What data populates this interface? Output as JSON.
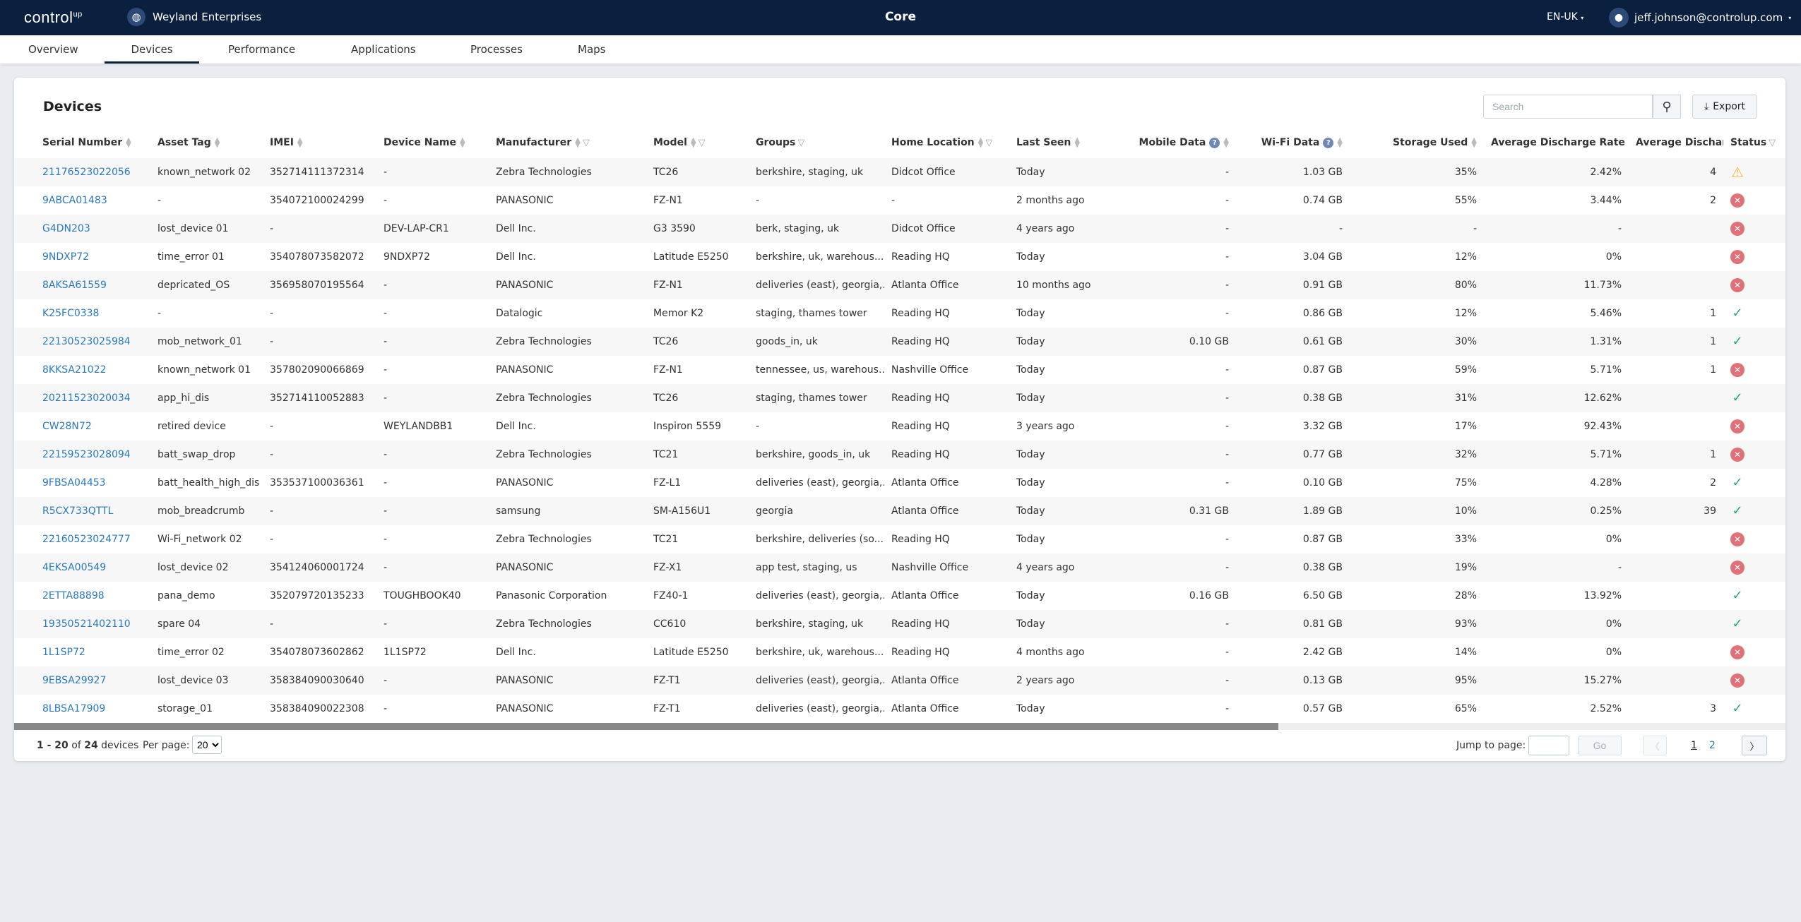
{
  "header": {
    "logo": "control",
    "logo_sup": "up",
    "org": "Weyland Enterprises",
    "title": "Core",
    "lang": "EN-UK",
    "user": "jeff.johnson@controlup.com"
  },
  "tabs": [
    {
      "label": "Overview"
    },
    {
      "label": "Devices",
      "active": true
    },
    {
      "label": "Performance"
    },
    {
      "label": "Applications"
    },
    {
      "label": "Processes"
    },
    {
      "label": "Maps"
    }
  ],
  "devices": {
    "title": "Devices",
    "search_placeholder": "Search",
    "export_label": "Export",
    "columns": [
      {
        "label": "Serial Number",
        "sort": true
      },
      {
        "label": "Asset Tag",
        "sort": true
      },
      {
        "label": "IMEI",
        "sort": true
      },
      {
        "label": "Device Name",
        "sort": true
      },
      {
        "label": "Manufacturer",
        "sort": true,
        "filter": true
      },
      {
        "label": "Model",
        "sort": true,
        "filter": true
      },
      {
        "label": "Groups",
        "filter": true
      },
      {
        "label": "Home Location",
        "sort": true,
        "filter": true
      },
      {
        "label": "Last Seen",
        "sort": true
      },
      {
        "label": "Mobile Data",
        "help": true,
        "sort": true,
        "align": "r"
      },
      {
        "label": "Wi-Fi Data",
        "help": true,
        "sort": true,
        "align": "r"
      },
      {
        "label": "Storage Used",
        "sort": true,
        "align": "r"
      },
      {
        "label": "Average Discharge Rate",
        "sort": true,
        "align": "r"
      },
      {
        "label": "Average Dischar",
        "align": "r"
      },
      {
        "label": "Status",
        "filter": true
      }
    ],
    "rows": [
      [
        "21176523022056",
        "known_network 02",
        "352714111372314",
        "-",
        "Zebra Technologies",
        "TC26",
        "berkshire, staging, uk",
        "Didcot Office",
        "Today",
        "-",
        "1.03 GB",
        "35%",
        "2.42%",
        "4",
        "warning"
      ],
      [
        "9ABCA01483",
        "-",
        "354072100024299",
        "-",
        "PANASONIC",
        "FZ-N1",
        "-",
        "-",
        "2 months ago",
        "-",
        "0.74 GB",
        "55%",
        "3.44%",
        "2",
        "error"
      ],
      [
        "G4DN203",
        "lost_device 01",
        "-",
        "DEV-LAP-CR1",
        "Dell Inc.",
        "G3 3590",
        "berk, staging, uk",
        "Didcot Office",
        "4 years ago",
        "-",
        "-",
        "-",
        "-",
        "",
        "error"
      ],
      [
        "9NDXP72",
        "time_error 01",
        "354078073582072",
        "9NDXP72",
        "Dell Inc.",
        "Latitude E5250",
        "berkshire, uk, warehous...",
        "Reading HQ",
        "Today",
        "-",
        "3.04 GB",
        "12%",
        "0%",
        "",
        "error"
      ],
      [
        "8AKSA61559",
        "depricated_OS",
        "356958070195564",
        "-",
        "PANASONIC",
        "FZ-N1",
        "deliveries (east), georgia,...",
        "Atlanta Office",
        "10 months ago",
        "-",
        "0.91 GB",
        "80%",
        "11.73%",
        "",
        "error"
      ],
      [
        "K25FC0338",
        "-",
        "-",
        "-",
        "Datalogic",
        "Memor K2",
        "staging, thames tower",
        "Reading HQ",
        "Today",
        "-",
        "0.86 GB",
        "12%",
        "5.46%",
        "1",
        "ok"
      ],
      [
        "22130523025984",
        "mob_network_01",
        "-",
        "-",
        "Zebra Technologies",
        "TC26",
        "goods_in, uk",
        "Reading HQ",
        "Today",
        "0.10 GB",
        "0.61 GB",
        "30%",
        "1.31%",
        "1",
        "ok"
      ],
      [
        "8KKSA21022",
        "known_network 01",
        "357802090066869",
        "-",
        "PANASONIC",
        "FZ-N1",
        "tennessee, us, warehous...",
        "Nashville Office",
        "Today",
        "-",
        "0.87 GB",
        "59%",
        "5.71%",
        "1",
        "error"
      ],
      [
        "20211523020034",
        "app_hi_dis",
        "352714110052883",
        "-",
        "Zebra Technologies",
        "TC26",
        "staging, thames tower",
        "Reading HQ",
        "Today",
        "-",
        "0.38 GB",
        "31%",
        "12.62%",
        "",
        "ok"
      ],
      [
        "CW28N72",
        "retired device",
        "-",
        "WEYLANDBB1",
        "Dell Inc.",
        "Inspiron 5559",
        "-",
        "Reading HQ",
        "3 years ago",
        "-",
        "3.32 GB",
        "17%",
        "92.43%",
        "",
        "error"
      ],
      [
        "22159523028094",
        "batt_swap_drop",
        "-",
        "-",
        "Zebra Technologies",
        "TC21",
        "berkshire, goods_in, uk",
        "Reading HQ",
        "Today",
        "-",
        "0.77 GB",
        "32%",
        "5.71%",
        "1",
        "error"
      ],
      [
        "9FBSA04453",
        "batt_health_high_dis",
        "353537100036361",
        "-",
        "PANASONIC",
        "FZ-L1",
        "deliveries (east), georgia,...",
        "Atlanta Office",
        "Today",
        "-",
        "0.10 GB",
        "75%",
        "4.28%",
        "2",
        "ok"
      ],
      [
        "R5CX733QTTL",
        "mob_breadcrumb",
        "-",
        "-",
        "samsung",
        "SM-A156U1",
        "georgia",
        "Atlanta Office",
        "Today",
        "0.31 GB",
        "1.89 GB",
        "10%",
        "0.25%",
        "39",
        "ok"
      ],
      [
        "22160523024777",
        "Wi-Fi_network 02",
        "-",
        "-",
        "Zebra Technologies",
        "TC21",
        "berkshire, deliveries (so...",
        "Reading HQ",
        "Today",
        "-",
        "0.87 GB",
        "33%",
        "0%",
        "",
        "error"
      ],
      [
        "4EKSA00549",
        "lost_device 02",
        "354124060001724",
        "-",
        "PANASONIC",
        "FZ-X1",
        "app test, staging, us",
        "Nashville Office",
        "4 years ago",
        "-",
        "0.38 GB",
        "19%",
        "-",
        "",
        "error"
      ],
      [
        "2ETTA88898",
        "pana_demo",
        "352079720135233",
        "TOUGHBOOK40",
        "Panasonic Corporation",
        "FZ40-1",
        "deliveries (east), georgia,...",
        "Atlanta Office",
        "Today",
        "0.16 GB",
        "6.50 GB",
        "28%",
        "13.92%",
        "",
        "ok"
      ],
      [
        "19350521402110",
        "spare 04",
        "-",
        "-",
        "Zebra Technologies",
        "CC610",
        "berkshire, staging, uk",
        "Reading HQ",
        "Today",
        "-",
        "0.81 GB",
        "93%",
        "0%",
        "",
        "ok"
      ],
      [
        "1L1SP72",
        "time_error 02",
        "354078073602862",
        "1L1SP72",
        "Dell Inc.",
        "Latitude E5250",
        "berkshire, uk, warehous...",
        "Reading HQ",
        "4 months ago",
        "-",
        "2.42 GB",
        "14%",
        "0%",
        "",
        "error"
      ],
      [
        "9EBSA29927",
        "lost_device 03",
        "358384090030640",
        "-",
        "PANASONIC",
        "FZ-T1",
        "deliveries (east), georgia,...",
        "Atlanta Office",
        "2 years ago",
        "-",
        "0.13 GB",
        "95%",
        "15.27%",
        "",
        "error"
      ],
      [
        "8LBSA17909",
        "storage_01",
        "358384090022308",
        "-",
        "PANASONIC",
        "FZ-T1",
        "deliveries (east), georgia,...",
        "Atlanta Office",
        "Today",
        "-",
        "0.57 GB",
        "65%",
        "2.52%",
        "3",
        "ok"
      ]
    ]
  },
  "footer": {
    "range": "1 - 20",
    "of": " of ",
    "total": "24",
    "unit": " devices",
    "per_page_label": "Per page:",
    "per_page": "20",
    "jump_label": "Jump to page:",
    "go": "Go",
    "pages": [
      "1",
      "2"
    ],
    "current_page": "1"
  },
  "colors": {
    "header_bg": "#0b1f3f",
    "link": "#2a79c2",
    "status_ok": "#2aa37a",
    "status_error": "#e07177",
    "status_warning": "#f5b83d"
  }
}
